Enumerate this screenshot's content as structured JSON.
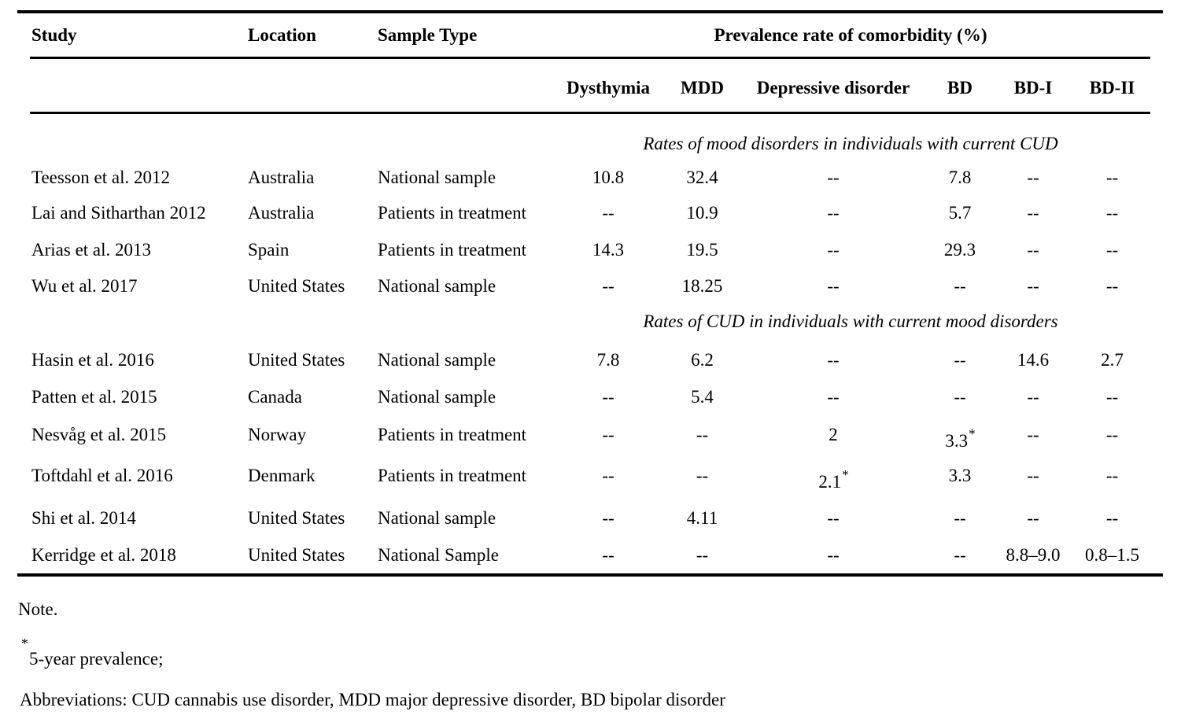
{
  "table": {
    "header": {
      "study": "Study",
      "location": "Location",
      "sample_type": "Sample Type",
      "group": "Prevalence rate of comorbidity (%)"
    },
    "sub_columns": [
      "Dysthymia",
      "MDD",
      "Depressive disorder",
      "BD",
      "BD-I",
      "BD-II"
    ],
    "sections": [
      {
        "title": "Rates of mood disorders in individuals with current CUD",
        "rows": [
          {
            "study": "Teesson et al. 2012",
            "location": "Australia",
            "sample_type": "National sample",
            "values": [
              "10.8",
              "32.4",
              "--",
              "7.8",
              "--",
              "--"
            ]
          },
          {
            "study": "Lai and Sitharthan 2012",
            "location": "Australia",
            "sample_type": "Patients in treatment",
            "values": [
              "--",
              "10.9",
              "--",
              "5.7",
              "--",
              "--"
            ]
          },
          {
            "study": "Arias et al. 2013",
            "location": "Spain",
            "sample_type": "Patients in treatment",
            "values": [
              "14.3",
              "19.5",
              "--",
              "29.3",
              "--",
              "--"
            ]
          },
          {
            "study": "Wu et al. 2017",
            "location": "United States",
            "sample_type": "National sample",
            "values": [
              "--",
              "18.25",
              "--",
              "--",
              "--",
              "--"
            ]
          }
        ]
      },
      {
        "title": "Rates of CUD in individuals with current mood disorders",
        "rows": [
          {
            "study": "Hasin et al. 2016",
            "location": "United States",
            "sample_type": "National sample",
            "values": [
              "7.8",
              "6.2",
              "--",
              "--",
              "14.6",
              "2.7"
            ]
          },
          {
            "study": "Patten et al. 2015",
            "location": "Canada",
            "sample_type": "National sample",
            "values": [
              "--",
              "5.4",
              "--",
              "--",
              "--",
              "--"
            ]
          },
          {
            "study": "Nesvåg et al. 2015",
            "location": "Norway",
            "sample_type": "Patients in treatment",
            "values": [
              "--",
              "--",
              "2",
              "3.3*",
              "--",
              "--"
            ]
          },
          {
            "study": "Toftdahl et al. 2016",
            "location": "Denmark",
            "sample_type": "Patients in treatment",
            "values": [
              "--",
              "--",
              "2.1*",
              "3.3",
              "--",
              "--"
            ]
          },
          {
            "study": "Shi et al. 2014",
            "location": "United States",
            "sample_type": "National sample",
            "values": [
              "--",
              "4.11",
              "--",
              "--",
              "--",
              "--"
            ]
          },
          {
            "study": "Kerridge et al. 2018",
            "location": "United States",
            "sample_type": "National Sample",
            "values": [
              "--",
              "--",
              "--",
              "--",
              "8.8–9.0",
              "0.8–1.5"
            ]
          }
        ]
      }
    ]
  },
  "notes": {
    "note_label": "Note.",
    "footnote_marker": "*",
    "footnote_text": "5-year prevalence;",
    "abbreviations": "Abbreviations: CUD cannabis use disorder, MDD major depressive disorder, BD bipolar disorder"
  },
  "colors": {
    "text": "#000000",
    "background": "#ffffff",
    "rule": "#000000"
  }
}
